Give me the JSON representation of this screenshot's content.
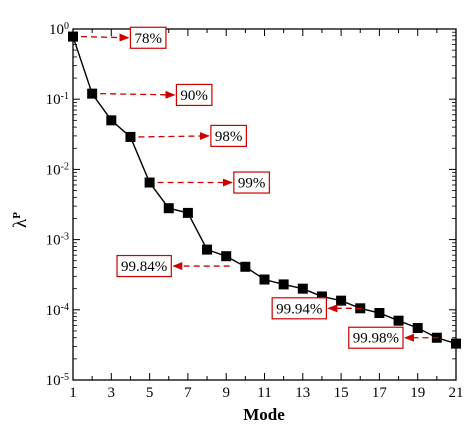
{
  "chart_data": {
    "type": "line",
    "xlabel": "Mode",
    "ylabel": "λ",
    "ylabel_superscript": "P",
    "xlim": [
      1,
      21
    ],
    "ylim": [
      1e-05,
      1
    ],
    "yscale": "log",
    "x_ticks": [
      1,
      3,
      5,
      7,
      9,
      11,
      13,
      15,
      17,
      19,
      21
    ],
    "y_ticks": [
      {
        "value": 1,
        "base": "10",
        "exp": "0"
      },
      {
        "value": 0.1,
        "base": "10",
        "exp": "-1"
      },
      {
        "value": 0.01,
        "base": "10",
        "exp": "-2"
      },
      {
        "value": 0.001,
        "base": "10",
        "exp": "-3"
      },
      {
        "value": 0.0001,
        "base": "10",
        "exp": "-4"
      },
      {
        "value": 1e-05,
        "base": "10",
        "exp": "-5"
      }
    ],
    "series": [
      {
        "marker": "square",
        "color": "#000000",
        "x": [
          1,
          2,
          3,
          4,
          5,
          6,
          7,
          8,
          9,
          10,
          11,
          12,
          13,
          14,
          15,
          16,
          17,
          18,
          19,
          20,
          21
        ],
        "y": [
          0.78,
          0.12,
          0.05,
          0.029,
          0.0065,
          0.0028,
          0.0024,
          0.00072,
          0.00058,
          0.00041,
          0.00027,
          0.00023,
          0.0002,
          0.000155,
          0.000135,
          0.000105,
          9e-05,
          7e-05,
          5.5e-05,
          4e-05,
          3.3e-05
        ]
      }
    ],
    "annotations": [
      {
        "text": "78%",
        "point_x": 1,
        "point_y": 0.78,
        "label_x": 4,
        "label_y": 0.75,
        "side": "right"
      },
      {
        "text": "90%",
        "point_x": 2,
        "point_y": 0.12,
        "label_x": 6.4,
        "label_y": 0.115,
        "side": "right"
      },
      {
        "text": "98%",
        "point_x": 4,
        "point_y": 0.029,
        "label_x": 8.2,
        "label_y": 0.03,
        "side": "right"
      },
      {
        "text": "99%",
        "point_x": 5,
        "point_y": 0.0065,
        "label_x": 9.4,
        "label_y": 0.0065,
        "side": "right"
      },
      {
        "text": "99.84%",
        "point_x": 9.6,
        "point_y": 0.00042,
        "label_x": 3.3,
        "label_y": 0.00042,
        "side": "left"
      },
      {
        "text": "99.94%",
        "point_x": 16.5,
        "point_y": 0.000105,
        "label_x": 11.4,
        "label_y": 0.000105,
        "side": "left"
      },
      {
        "text": "99.98%",
        "point_x": 20.5,
        "point_y": 4e-05,
        "label_x": 15.4,
        "label_y": 4e-05,
        "side": "left"
      }
    ],
    "arrow_color": "#cc0000",
    "label_border_color": "#cc0000"
  }
}
